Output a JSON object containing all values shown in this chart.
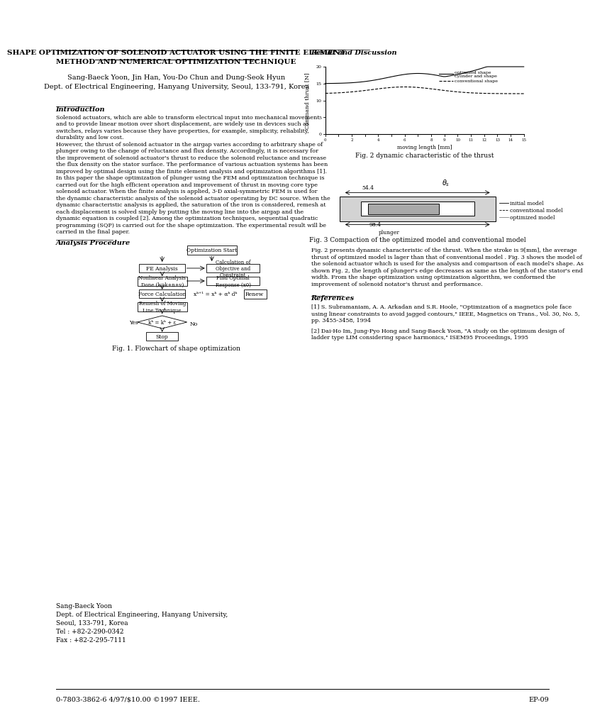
{
  "title_line1": "SHAPE OPTIMIZATION OF SOLENOID ACTUATOR USING THE FINITE ELEMENT",
  "title_line2": "METHOD AND NUMERICAL OPTIMIZATION TECHNIQUE",
  "authors": "Sang-Baeck Yoon, Jin Han, You-Do Chun and Dung-Seok Hyun",
  "affiliation": "Dept. of Electrical Engineering, Hanyang University, Seoul, 133-791, Korea",
  "section_intro": "Introduction",
  "intro_text": "Solenoid actuators, which are able to transform electrical input into mechanical movement\nand to provide linear motion over short displacement, are widely use in devices such as\nswitches, relays varies because they have properties, for example, simplicity, reliability,\ndurability and low cost.\nHowever, the thrust of solenoid actuator in the airgap varies according to arbitrary shape of\nplunger owing to the change of reluctance and flux density. Accordingly, it is necessary for\nthe improvement of solenoid actuator's thrust to reduce the solenoid reluctance and increase\nthe flux density on the stator surface. The performance of various actuation systems has been\nimproved by optimal design using the finite element analysis and optimization algorithms [1].\nIn this paper the shape optimization of plunger using the FEM and optimization technique is\ncarried out for the high efficient operation and improvement of thrust in moving core type\nsolenoid actuator. When the finite analysis is applied, 3-D axial-symmetric FEM is used for\nthe dynamic characteristic analysis of the solenoid actuator operating by DC source. When the\ndynamic characteristic analysis is applied, the saturation of the iron is considered, remesh at\neach displacement is solved simply by putting the moving line into the airgap and the\ndynamic equation is coupled [2]. Among the optimization techniques, sequential quadratic\nprogramming (SQP) is carried out for the shape optimization. The experimental result will be\ncarried in the final paper.",
  "section_analysis": "Analysis Procedure",
  "fig1_caption": "Fig. 1. Flowchart of shape optimization",
  "section_result": "Result and Discussion",
  "fig2_caption": "Fig. 2 dynamic characteristic of the thrust",
  "fig3_caption": "Fig. 3 Compaction of the optimized model and conventional model",
  "result_text": "Fig. 2 presents dynamic characteristic of the thrust. When the stroke is 9[mm], the average\nthrust of optimized model is lager than that of conventional model . Fig. 3 shows the model of\nthe solenoid actuator which is used for the analysis and comparison of each model's shape. As\nshown Fig. 2, the length of plunger's edge decreases as same as the length of the stator's end\nwidth. From the shape optimization using optimization algorithm, we conformed the\nimprovement of solenoid notator's thrust and performance.",
  "section_ref": "References",
  "ref1": "[1] S. Subramaniam, A. A. Arkadan and S.R. Hoole, \"Optimization of a magnetics pole face\nusing linear constraints to avoid jagged contours,\" IEEE, Magnetics on Trans., Vol. 30, No. 5,\npp. 3455-3458, 1994",
  "ref2": "[2] Dai-Ho Im, Jung-Pyo Hong and Sang-Baeck Yoon, \"A study on the optimum design of\nladder type LIM considering space harmonics,\" ISEM95 Proceedings, 1995",
  "contact_name": "Sang-Baeck Yoon",
  "contact_dept": "Dept. of Electrical Engineering, Hanyang University,",
  "contact_city": "Seoul, 133-791, Korea",
  "contact_tel": "Tel : +82-2-290-0342",
  "contact_fax": "Fax : +82-2-295-7111",
  "footer_left": "0-7803-3862-6 4/97/$10.00 ©1997 IEEE.",
  "footer_right": "EP-09",
  "bg_color": "#ffffff",
  "text_color": "#000000"
}
